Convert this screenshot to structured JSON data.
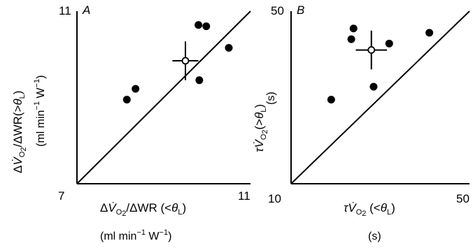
{
  "chart_data": [
    {
      "type": "scatter",
      "panel_label": "A",
      "xlim": [
        7,
        11
      ],
      "ylim": [
        7,
        11
      ],
      "x_tick_labels": [
        "7",
        "11"
      ],
      "y_tick_labels": [
        "11"
      ],
      "xlabel": "ΔV̇O2/ΔWR (<θL)",
      "xlabel_parts": [
        "Δ",
        "V̇",
        "O",
        "2",
        "/ΔWR (<",
        "θ",
        "L",
        ")"
      ],
      "xunits_parts": [
        "(ml min",
        "−1",
        " W",
        "−1",
        ")"
      ],
      "ylabel": "ΔV̇O2/ΔWR(>θL)",
      "ylabel_parts": [
        "Δ",
        "V̇",
        "O",
        "2",
        "/ΔWR(>",
        "θ",
        "L",
        ")"
      ],
      "yunits_parts": [
        "(ml min",
        "−1",
        " W",
        "−1",
        ")"
      ],
      "identity_line": [
        [
          7,
          7
        ],
        [
          11,
          11
        ]
      ],
      "series": [
        {
          "marker": "filled",
          "points": [
            [
              8.15,
              8.95
            ],
            [
              8.35,
              9.2
            ],
            [
              9.8,
              10.68
            ],
            [
              9.98,
              10.65
            ],
            [
              10.5,
              10.15
            ],
            [
              9.82,
              9.4
            ]
          ]
        },
        {
          "marker": "open",
          "points": [
            [
              9.5,
              9.85
            ]
          ],
          "x_error": 0.3,
          "y_error": 0.45
        }
      ]
    },
    {
      "type": "scatter",
      "panel_label": "B",
      "xlim": [
        10,
        50
      ],
      "ylim": [
        10,
        50
      ],
      "x_tick_labels": [
        "10",
        "50"
      ],
      "y_tick_labels": [
        "50"
      ],
      "xlabel": "τV̇O2 (<θL)",
      "xlabel_parts": [
        "τ",
        "V̇",
        "O",
        "2",
        " (<",
        "θ",
        "L",
        ")"
      ],
      "xunits": "(s)",
      "ylabel": "τV̇O2(>θL)",
      "ylabel_parts": [
        "τ",
        "V̇",
        "O",
        "2",
        "(>",
        "θ",
        "L",
        ")"
      ],
      "yunits": "(s)",
      "identity_line": [
        [
          10,
          10
        ],
        [
          50,
          50
        ]
      ],
      "series": [
        {
          "marker": "filled",
          "points": [
            [
              19,
              29.5
            ],
            [
              23.5,
              43.5
            ],
            [
              24,
              46
            ],
            [
              28.5,
              32.5
            ],
            [
              32,
              42.5
            ],
            [
              41,
              45
            ]
          ]
        },
        {
          "marker": "open",
          "points": [
            [
              28,
              41
            ]
          ],
          "x_error": 3.5,
          "y_error": 4.5
        }
      ]
    }
  ]
}
